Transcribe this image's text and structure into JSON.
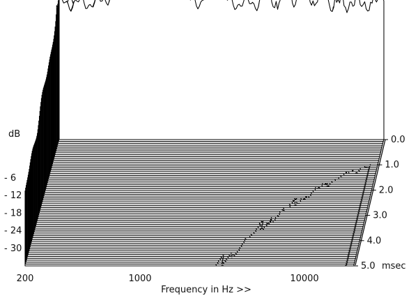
{
  "chart_data": {
    "type": "waterfall",
    "xlabel": "Frequency in Hz >>",
    "ylabel": "dB",
    "zlabel": "msec",
    "x_scale": "log",
    "x_ticks": [
      {
        "value": 200,
        "label": "200"
      },
      {
        "value": 1000,
        "label": "1000"
      },
      {
        "value": 10000,
        "label": "10000"
      }
    ],
    "xlim": [
      200,
      20000
    ],
    "y_ticks": [
      {
        "value": -6,
        "label": "- 6"
      },
      {
        "value": -12,
        "label": "- 12"
      },
      {
        "value": -18,
        "label": "- 18"
      },
      {
        "value": -24,
        "label": "- 24"
      },
      {
        "value": -30,
        "label": "- 30"
      }
    ],
    "ylim": [
      -36,
      3
    ],
    "z_ticks": [
      {
        "value": 0.0,
        "label": "0.0"
      },
      {
        "value": 1.0,
        "label": "1.0"
      },
      {
        "value": 2.0,
        "label": "2.0"
      },
      {
        "value": 3.0,
        "label": "3.0"
      },
      {
        "value": 4.0,
        "label": "4.0"
      },
      {
        "value": 5.0,
        "label": "5.0"
      }
    ],
    "zlim": [
      0,
      5
    ],
    "slice_count": 68,
    "colors": {
      "line": "#000000",
      "fill": "#ffffff",
      "text": "#111111"
    }
  }
}
